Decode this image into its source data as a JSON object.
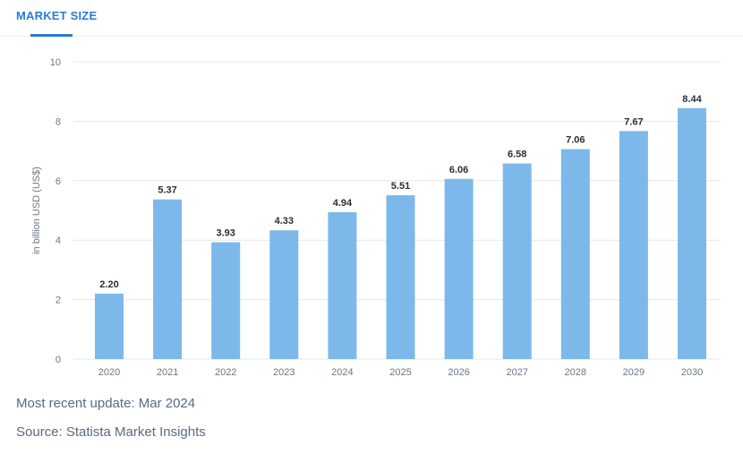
{
  "tabs": [
    {
      "label": "MARKET SIZE",
      "active": true
    }
  ],
  "footer": {
    "update": "Most recent update: Mar 2024",
    "source": "Source: Statista Market Insights"
  },
  "colors": {
    "accent": "#2b7bd6",
    "bar": "#7cb9ea",
    "grid": "#e3e8ee",
    "tick": "#6b7785",
    "label": "#2a2f36"
  },
  "chart_data": {
    "type": "bar",
    "title": "",
    "xlabel": "",
    "ylabel": "in billion USD (US$)",
    "ylim": [
      0,
      10
    ],
    "yticks": [
      0,
      2,
      4,
      6,
      8,
      10
    ],
    "categories": [
      "2020",
      "2021",
      "2022",
      "2023",
      "2024",
      "2025",
      "2026",
      "2027",
      "2028",
      "2029",
      "2030"
    ],
    "values": [
      2.2,
      5.37,
      3.93,
      4.33,
      4.94,
      5.51,
      6.06,
      6.58,
      7.06,
      7.67,
      8.44
    ],
    "value_labels": [
      "2.20",
      "5.37",
      "3.93",
      "4.33",
      "4.94",
      "5.51",
      "6.06",
      "6.58",
      "7.06",
      "7.67",
      "8.44"
    ],
    "grid": true
  }
}
